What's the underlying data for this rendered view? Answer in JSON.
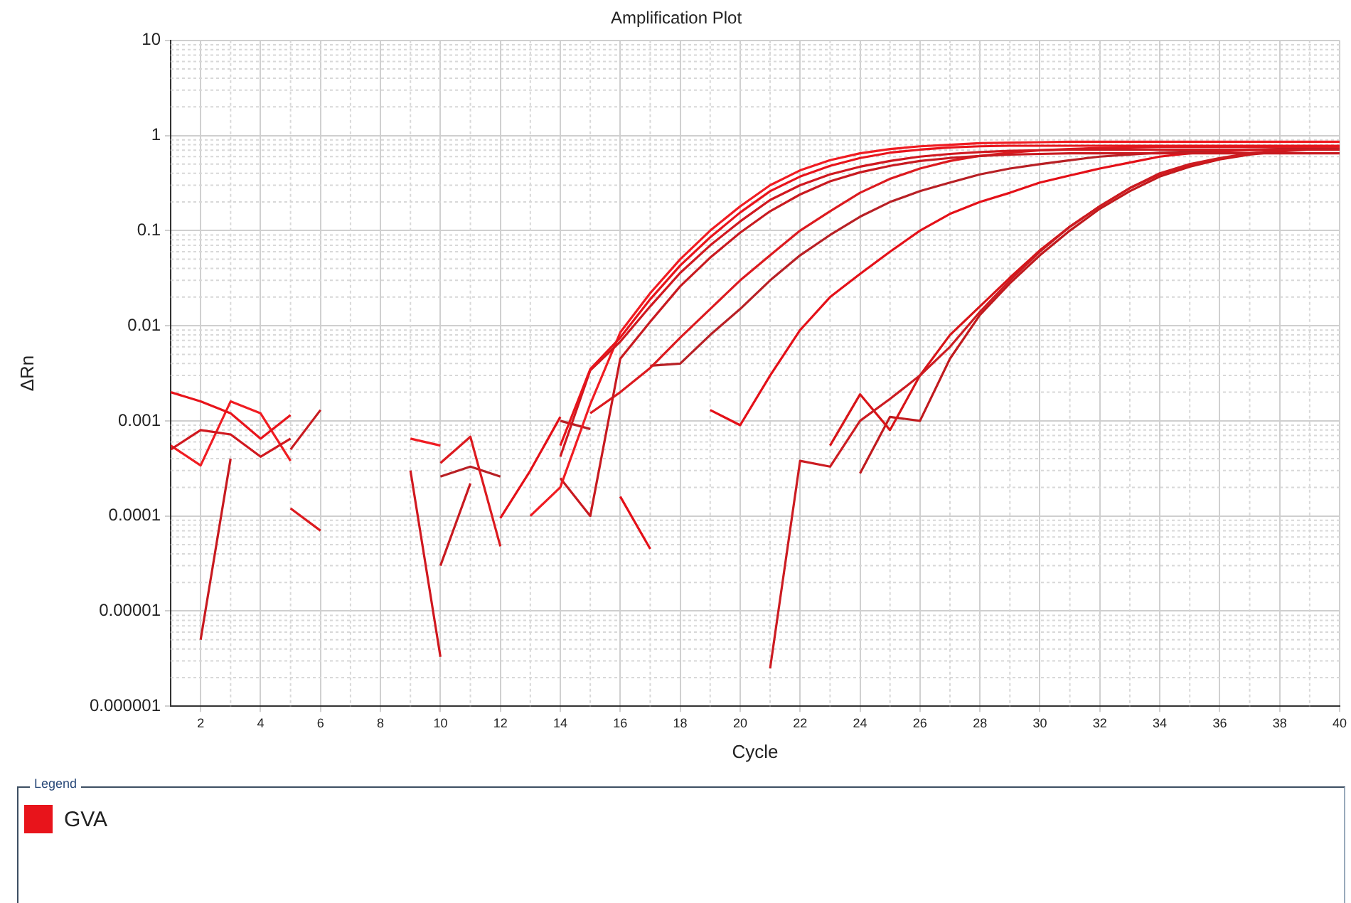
{
  "chart_data": {
    "type": "line",
    "title": "Amplification Plot",
    "xlabel": "Cycle",
    "ylabel": "ΔRn",
    "legend_title": "Legend",
    "legend": "bottom",
    "log": "y",
    "grid": true,
    "marker": "none",
    "line_style": "solid",
    "x": [
      1,
      2,
      3,
      4,
      5,
      6,
      7,
      8,
      9,
      10,
      11,
      12,
      13,
      14,
      15,
      16,
      17,
      18,
      19,
      20,
      21,
      22,
      23,
      24,
      25,
      26,
      27,
      28,
      29,
      30,
      31,
      32,
      33,
      34,
      35,
      36,
      37,
      38,
      39,
      40
    ],
    "xlim": [
      1,
      40
    ],
    "xticks": [
      2,
      4,
      6,
      8,
      10,
      12,
      14,
      16,
      18,
      20,
      22,
      24,
      26,
      28,
      30,
      32,
      34,
      36,
      38,
      40
    ],
    "ylim": [
      1e-06,
      10
    ],
    "yticks": [
      {
        "value": 1e-06,
        "label": "0.000001"
      },
      {
        "value": 1e-05,
        "label": "0.00001"
      },
      {
        "value": 0.0001,
        "label": "0.0001"
      },
      {
        "value": 0.001,
        "label": "0.001"
      },
      {
        "value": 0.01,
        "label": "0.01"
      },
      {
        "value": 0.1,
        "label": "0.1"
      },
      {
        "value": 1,
        "label": "1"
      },
      {
        "value": 10,
        "label": "10"
      }
    ],
    "series": [
      {
        "name": "GVA",
        "color": "#e8141b",
        "values": [
          0.002,
          0.0016,
          0.0012,
          0.00065,
          0.00115,
          null,
          null,
          null,
          null,
          null,
          null,
          null,
          null,
          0.00055,
          0.0035,
          0.0075,
          0.019,
          0.043,
          0.085,
          0.155,
          0.26,
          0.37,
          0.48,
          0.58,
          0.66,
          0.71,
          0.75,
          0.77,
          0.78,
          0.78,
          0.78,
          0.78,
          0.78,
          0.78,
          0.78,
          0.78,
          0.78,
          0.78,
          0.78,
          0.78
        ]
      },
      {
        "color": "#d0181f",
        "values": [
          0.0005,
          0.0008,
          0.00072,
          0.00042,
          0.00065,
          null,
          null,
          null,
          0.0003,
          3.3e-06,
          null,
          null,
          null,
          0.00042,
          0.0034,
          0.0068,
          0.016,
          0.036,
          0.07,
          0.125,
          0.21,
          0.3,
          0.39,
          0.47,
          0.54,
          0.6,
          0.64,
          0.67,
          0.69,
          0.7,
          0.71,
          0.71,
          0.71,
          0.71,
          0.71,
          0.71,
          0.71,
          0.71,
          0.71,
          0.71
        ]
      },
      {
        "color": "#f01c22",
        "values": [
          0.00055,
          0.00034,
          0.0016,
          0.0012,
          0.00038,
          null,
          null,
          null,
          0.00065,
          0.00055,
          null,
          null,
          0.0001,
          0.0002,
          0.0015,
          0.0085,
          0.022,
          0.05,
          0.1,
          0.18,
          0.3,
          0.43,
          0.55,
          0.65,
          0.72,
          0.77,
          0.8,
          0.83,
          0.84,
          0.85,
          0.86,
          0.86,
          0.86,
          0.86,
          0.86,
          0.86,
          0.86,
          0.86,
          0.86,
          0.86
        ]
      },
      {
        "color": "#c81a20",
        "values": [
          null,
          5e-06,
          0.0004,
          null,
          0.0005,
          0.0013,
          null,
          null,
          null,
          3e-05,
          0.00022,
          null,
          null,
          0.00025,
          0.0001,
          0.0045,
          0.011,
          0.026,
          0.052,
          0.095,
          0.16,
          0.24,
          0.33,
          0.41,
          0.48,
          0.54,
          0.58,
          0.61,
          0.63,
          0.64,
          0.65,
          0.65,
          0.65,
          0.65,
          0.65,
          0.65,
          0.65,
          0.65,
          0.65,
          0.65
        ]
      },
      {
        "color": "#dc1a1f",
        "values": [
          null,
          null,
          null,
          null,
          0.00012,
          7e-05,
          null,
          null,
          null,
          0.00036,
          0.00068,
          4.8e-05,
          null,
          null,
          0.0012,
          0.002,
          0.0036,
          0.0075,
          0.015,
          0.03,
          0.055,
          0.1,
          0.16,
          0.25,
          0.35,
          0.45,
          0.54,
          0.61,
          0.66,
          0.7,
          0.72,
          0.74,
          0.75,
          0.76,
          0.76,
          0.76,
          0.76,
          0.76,
          0.76,
          0.76
        ]
      },
      {
        "color": "#b82025",
        "values": [
          null,
          null,
          null,
          null,
          null,
          null,
          null,
          null,
          null,
          0.00026,
          0.00033,
          0.00026,
          null,
          0.001,
          0.00082,
          null,
          0.0038,
          0.004,
          0.008,
          0.015,
          0.03,
          0.055,
          0.09,
          0.14,
          0.2,
          0.26,
          0.32,
          0.39,
          0.45,
          0.5,
          0.55,
          0.6,
          0.63,
          0.66,
          0.68,
          0.7,
          0.71,
          0.72,
          0.73,
          0.73
        ]
      },
      {
        "color": "#e41018",
        "values": [
          null,
          null,
          null,
          null,
          null,
          null,
          null,
          null,
          null,
          null,
          null,
          9.5e-05,
          0.0003,
          0.0011,
          null,
          0.00016,
          4.5e-05,
          null,
          0.0013,
          0.0009,
          0.003,
          0.009,
          0.02,
          0.035,
          0.06,
          0.1,
          0.15,
          0.2,
          0.25,
          0.32,
          0.38,
          0.45,
          0.52,
          0.6,
          0.65,
          0.68,
          0.7,
          0.72,
          0.73,
          0.74
        ]
      },
      {
        "color": "#cc1c22",
        "values": [
          null,
          null,
          null,
          null,
          null,
          null,
          null,
          null,
          null,
          null,
          null,
          null,
          null,
          null,
          null,
          null,
          null,
          null,
          null,
          null,
          2.5e-06,
          0.00038,
          0.00033,
          0.001,
          0.0017,
          0.003,
          0.006,
          0.014,
          0.03,
          0.06,
          0.11,
          0.18,
          0.28,
          0.4,
          0.5,
          0.58,
          0.65,
          0.7,
          0.73,
          0.75
        ]
      },
      {
        "color": "#d81418",
        "values": [
          null,
          null,
          null,
          null,
          null,
          null,
          null,
          null,
          null,
          null,
          null,
          null,
          null,
          null,
          null,
          null,
          null,
          null,
          null,
          null,
          null,
          null,
          0.00055,
          0.0019,
          0.0008,
          0.003,
          0.008,
          0.016,
          0.032,
          0.062,
          0.11,
          0.18,
          0.28,
          0.39,
          0.49,
          0.57,
          0.64,
          0.69,
          0.72,
          0.74
        ]
      },
      {
        "color": "#c01a1e",
        "values": [
          null,
          null,
          null,
          null,
          null,
          null,
          null,
          null,
          null,
          null,
          null,
          null,
          null,
          null,
          null,
          null,
          null,
          null,
          null,
          null,
          null,
          null,
          null,
          0.00028,
          0.0011,
          0.001,
          0.0045,
          0.013,
          0.028,
          0.055,
          0.1,
          0.17,
          0.26,
          0.37,
          0.47,
          0.56,
          0.63,
          0.68,
          0.71,
          0.73
        ]
      }
    ]
  }
}
